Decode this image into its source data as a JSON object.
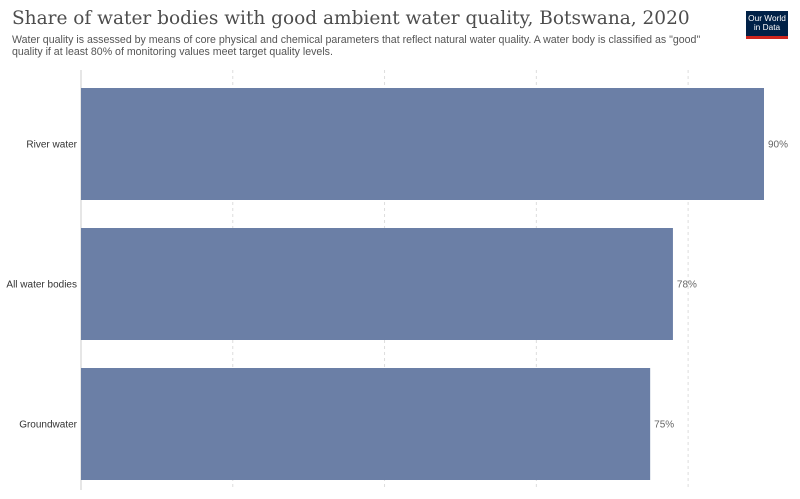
{
  "header": {
    "title": "Share of water bodies with good ambient water quality, Botswana, 2020",
    "subtitle": "Water quality is assessed by means of core physical and chemical parameters that reflect natural water quality. A water body is classified as \"good\" quality if at least 80% of monitoring values meet target quality levels.",
    "logo_line1": "Our World",
    "logo_line2": "in Data"
  },
  "colors": {
    "bar": "#6b7fa6",
    "grid": "#dddddd",
    "logo_bg": "#002147",
    "logo_accent": "#ce261e"
  },
  "chart_data": {
    "type": "bar",
    "orientation": "horizontal",
    "title": "Share of water bodies with good ambient water quality, Botswana, 2020",
    "subtitle": "Water quality is assessed by means of core physical and chemical parameters that reflect natural water quality. A water body is classified as \"good\" quality if at least 80% of monitoring values meet target quality levels.",
    "categories": [
      "River water",
      "All water bodies",
      "Groundwater"
    ],
    "values": [
      90,
      78,
      75
    ],
    "value_labels": [
      "90%",
      "78%",
      "75%"
    ],
    "unit": "%",
    "xlim": [
      0,
      90
    ],
    "gridlines_at": [
      0,
      20,
      40,
      60,
      80
    ],
    "grid": true,
    "xlabel": "",
    "ylabel": ""
  }
}
